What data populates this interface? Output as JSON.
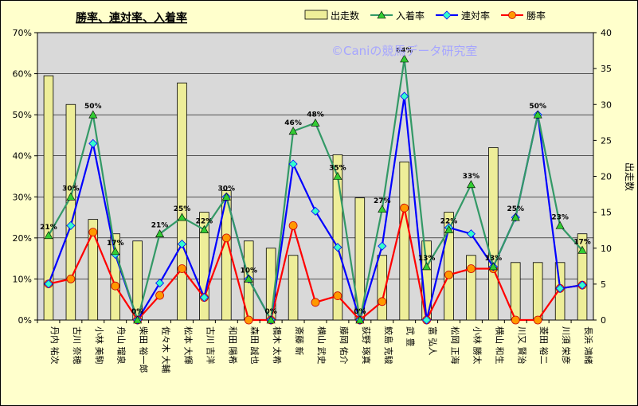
{
  "chart_data": {
    "type": "bar",
    "title": "勝率、連対率、入着率",
    "watermark": "©Caniの競馬データ研究室",
    "y2label": "出走数",
    "categories": [
      "丹内 祐次",
      "古川 奈穂",
      "小林 美駒",
      "舟山 瑠泉",
      "柴田 裕一郎",
      "佐々木 大輔",
      "松本 大輝",
      "古川 吉洋",
      "和田 陽希",
      "森田 誠也",
      "橋木 太希",
      "斎藤 新",
      "横山 武史",
      "藤岡 佑介",
      "荻野 琢真",
      "鮫島 克駿",
      "武 豊",
      "富 弘人",
      "松岡 正海",
      "小林 勝太",
      "横山 和生",
      "川又 賢治",
      "菱田 裕二",
      "川須 栄彦",
      "長浜 鴻緒"
    ],
    "ylim": [
      0,
      70
    ],
    "y2lim": [
      0,
      40
    ],
    "yticks": [
      "0%",
      "10%",
      "20%",
      "30%",
      "40%",
      "50%",
      "60%",
      "70%"
    ],
    "y2ticks": [
      "0",
      "5",
      "10",
      "15",
      "20",
      "25",
      "30",
      "35",
      "40"
    ],
    "legend_position": "top-right",
    "series": [
      {
        "name": "出走数",
        "kind": "bar",
        "axis": "right",
        "color": "#eeee99",
        "values": [
          34,
          30,
          14,
          12,
          11,
          0,
          33,
          15,
          18,
          11,
          10,
          9,
          0,
          23,
          17,
          9,
          22,
          11,
          15,
          9,
          24,
          8,
          8,
          8,
          12
        ]
      },
      {
        "name": "入着率",
        "kind": "line",
        "axis": "left",
        "color": "#339966",
        "values": [
          20.6,
          30,
          50,
          16.7,
          0,
          21,
          25,
          22,
          30,
          10,
          0,
          46,
          48,
          35,
          0,
          27,
          63.6,
          13,
          22,
          33,
          13,
          25,
          50,
          23,
          17
        ],
        "labels": [
          "21%",
          "30%",
          "50%",
          "17%",
          "0%",
          "21%",
          "25%",
          "22%",
          "30%",
          "10%",
          "0%",
          "46%",
          "48%",
          "35%",
          "0%",
          "27%",
          "64%",
          "13%",
          "22%",
          "33%",
          "13%",
          "25%",
          "50%",
          "23%",
          "17%"
        ]
      },
      {
        "name": "連対率",
        "kind": "line",
        "axis": "left",
        "color": "#0000ff",
        "values": [
          8.8,
          23,
          43,
          16,
          0,
          9,
          18.5,
          5.5,
          30,
          10,
          0,
          38,
          26.5,
          17.7,
          0,
          18,
          54.5,
          0,
          22.5,
          21,
          13,
          25,
          50,
          7.7,
          8.5
        ]
      },
      {
        "name": "勝率",
        "kind": "line",
        "axis": "left",
        "color": "#ff0000",
        "values": [
          8.8,
          10,
          21.4,
          8.3,
          0,
          6,
          12.5,
          5.5,
          20,
          0,
          0,
          23,
          4.3,
          5.9,
          0,
          4.5,
          27.3,
          0,
          11,
          12.5,
          12.5,
          0,
          0,
          7.7,
          8.5
        ]
      }
    ]
  }
}
